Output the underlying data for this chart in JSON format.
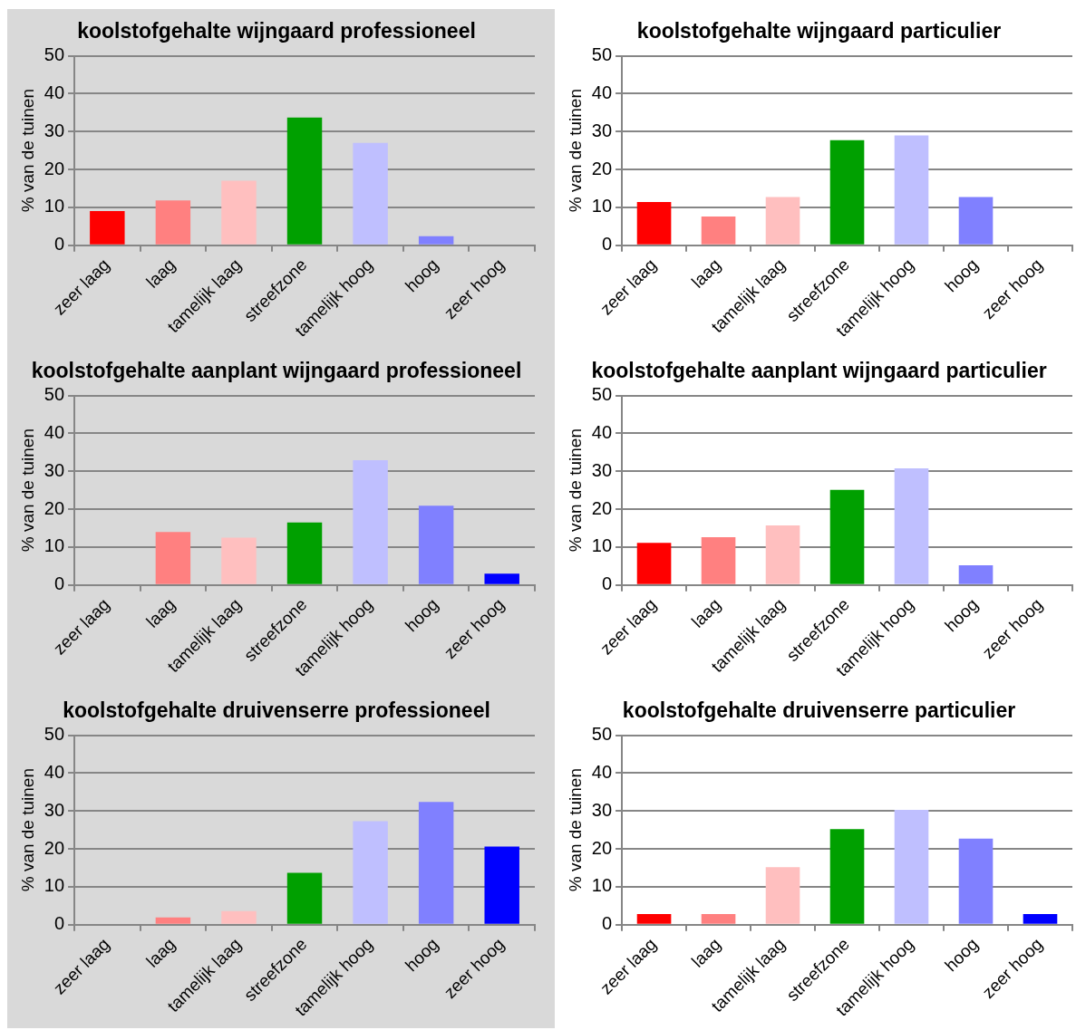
{
  "chart_data": [
    {
      "type": "bar",
      "title": "koolstofgehalte wijngaard professioneel",
      "ylabel": "% van de tuinen",
      "categories": [
        "zeer laag",
        "laag",
        "tamelijk laag",
        "streefzone",
        "tamelijk hoog",
        "hoog",
        "zeer hoog"
      ],
      "values": [
        9,
        11.8,
        17,
        33.7,
        27,
        2.4,
        0
      ],
      "colors": [
        "#ff0000",
        "#ff8080",
        "#ffbfbf",
        "#00a000",
        "#bfbfff",
        "#8080ff",
        "#0000ff"
      ],
      "ylim": [
        0,
        50
      ],
      "yticks": [
        0,
        10,
        20,
        30,
        40,
        50
      ],
      "grid": "y"
    },
    {
      "type": "bar",
      "title": "koolstofgehalte wijngaard particulier",
      "ylabel": "% van de tuinen",
      "categories": [
        "zeer laag",
        "laag",
        "tamelijk laag",
        "streefzone",
        "tamelijk hoog",
        "hoog",
        "zeer hoog"
      ],
      "values": [
        11.4,
        7.6,
        12.7,
        27.7,
        29,
        12.7,
        0
      ],
      "colors": [
        "#ff0000",
        "#ff8080",
        "#ffbfbf",
        "#00a000",
        "#bfbfff",
        "#8080ff",
        "#0000ff"
      ],
      "ylim": [
        0,
        50
      ],
      "yticks": [
        0,
        10,
        20,
        30,
        40,
        50
      ],
      "grid": "y"
    },
    {
      "type": "bar",
      "title": "koolstofgehalte aanplant wijngaard professioneel",
      "ylabel": "% van de tuinen",
      "categories": [
        "zeer laag",
        "laag",
        "tamelijk laag",
        "streefzone",
        "tamelijk hoog",
        "hoog",
        "zeer hoog"
      ],
      "values": [
        0,
        14,
        12.5,
        16.5,
        32.9,
        20.9,
        3
      ],
      "colors": [
        "#ff0000",
        "#ff8080",
        "#ffbfbf",
        "#00a000",
        "#bfbfff",
        "#8080ff",
        "#0000ff"
      ],
      "ylim": [
        0,
        50
      ],
      "yticks": [
        0,
        10,
        20,
        30,
        40,
        50
      ],
      "grid": "y"
    },
    {
      "type": "bar",
      "title": "koolstofgehalte aanplant wijngaard particulier",
      "ylabel": "% van de tuinen",
      "categories": [
        "zeer laag",
        "laag",
        "tamelijk laag",
        "streefzone",
        "tamelijk hoog",
        "hoog",
        "zeer hoog"
      ],
      "values": [
        11.1,
        12.6,
        15.7,
        25.1,
        30.8,
        5.2,
        0
      ],
      "colors": [
        "#ff0000",
        "#ff8080",
        "#ffbfbf",
        "#00a000",
        "#bfbfff",
        "#8080ff",
        "#0000ff"
      ],
      "ylim": [
        0,
        50
      ],
      "yticks": [
        0,
        10,
        20,
        30,
        40,
        50
      ],
      "grid": "y"
    },
    {
      "type": "bar",
      "title": "koolstofgehalte druivenserre professioneel",
      "ylabel": "% van de tuinen",
      "categories": [
        "zeer laag",
        "laag",
        "tamelijk laag",
        "streefzone",
        "tamelijk hoog",
        "hoog",
        "zeer hoog"
      ],
      "values": [
        0,
        1.9,
        3.6,
        13.7,
        27.3,
        32.4,
        20.6
      ],
      "colors": [
        "#ff0000",
        "#ff8080",
        "#ffbfbf",
        "#00a000",
        "#bfbfff",
        "#8080ff",
        "#0000ff"
      ],
      "ylim": [
        0,
        50
      ],
      "yticks": [
        0,
        10,
        20,
        30,
        40,
        50
      ],
      "grid": "y"
    },
    {
      "type": "bar",
      "title": "koolstofgehalte druivenserre particulier",
      "ylabel": "% van de tuinen",
      "categories": [
        "zeer laag",
        "laag",
        "tamelijk laag",
        "streefzone",
        "tamelijk hoog",
        "hoog",
        "zeer hoog"
      ],
      "values": [
        2.8,
        2.8,
        15.2,
        25.2,
        30.3,
        22.7,
        2.8
      ],
      "colors": [
        "#ff0000",
        "#ff8080",
        "#ffbfbf",
        "#00a000",
        "#bfbfff",
        "#8080ff",
        "#0000ff"
      ],
      "ylim": [
        0,
        50
      ],
      "yticks": [
        0,
        10,
        20,
        30,
        40,
        50
      ],
      "grid": "y"
    }
  ]
}
